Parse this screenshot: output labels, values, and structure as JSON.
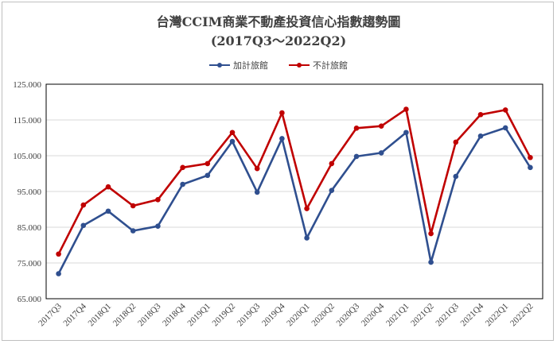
{
  "chart_data": {
    "type": "line",
    "title": "台灣CCIM商業不動產投資信心指數趨勢圖",
    "subtitle": "(2017Q3～2022Q2)",
    "xlabel": "",
    "ylabel": "",
    "ylim": [
      65,
      125
    ],
    "yticks": [
      "65.000",
      "75.000",
      "85.000",
      "95.000",
      "105.000",
      "115.000",
      "125.000"
    ],
    "grid": "horizontal",
    "legend_position": "top",
    "categories": [
      "2017Q3",
      "2017Q4",
      "2018Q1",
      "2018Q2",
      "2018Q3",
      "2018Q4",
      "2019Q1",
      "2019Q2",
      "2019Q3",
      "2019Q4",
      "2020Q1",
      "2020Q2",
      "2020Q3",
      "2020Q4",
      "2021Q1",
      "2021Q2",
      "2021Q3",
      "2021Q4",
      "2022Q1",
      "2022Q2"
    ],
    "series": [
      {
        "name": "加計旅館",
        "color": "#2f4f8f",
        "values": [
          72.0,
          85.5,
          89.5,
          84.0,
          85.3,
          97.0,
          99.5,
          109.0,
          94.8,
          109.8,
          82.0,
          95.3,
          104.8,
          105.8,
          111.5,
          75.2,
          99.2,
          110.5,
          112.8,
          101.7
        ]
      },
      {
        "name": "不計旅館",
        "color": "#c00000",
        "values": [
          77.5,
          91.2,
          96.3,
          91.0,
          92.7,
          101.7,
          102.8,
          111.5,
          101.4,
          117.0,
          90.2,
          102.8,
          112.7,
          113.3,
          118.0,
          83.2,
          108.8,
          116.5,
          117.8,
          104.5
        ]
      }
    ]
  }
}
